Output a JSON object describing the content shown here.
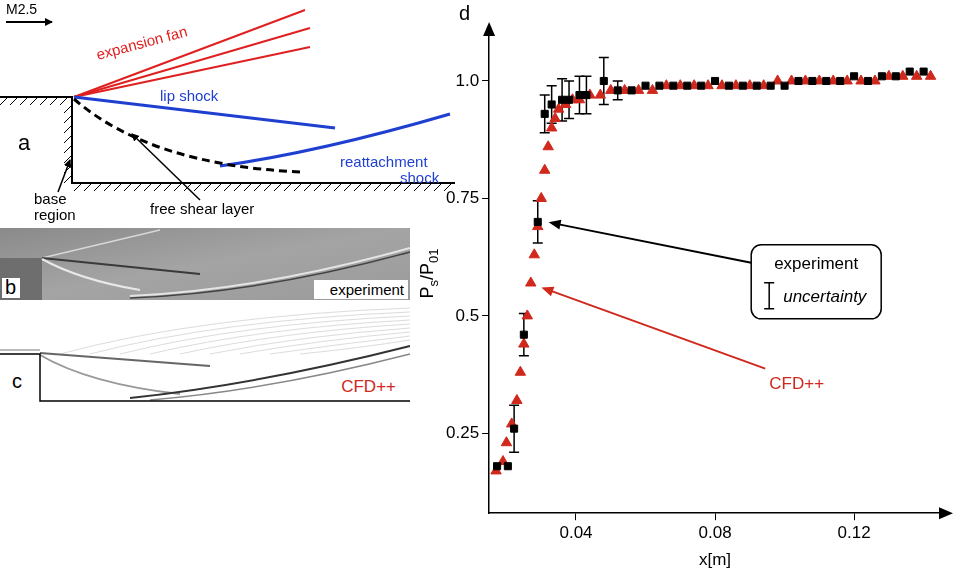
{
  "panels": {
    "a": {
      "letter": "a",
      "flow_label": "M2.5",
      "expansion_fan": "expansion fan",
      "lip_shock": "lip shock",
      "reattachment_shock": "reattachment shock",
      "base_region": "base region",
      "free_shear_layer": "free shear layer"
    },
    "b": {
      "letter": "b",
      "label": "experiment"
    },
    "c": {
      "letter": "c",
      "label": "CFD++"
    }
  },
  "chart_data": {
    "type": "scatter",
    "panel": "d",
    "y_label": [
      {
        "text": "P"
      },
      {
        "text": "s",
        "sub": true
      },
      {
        "text": "/P"
      },
      {
        "text": "01",
        "sub": true
      }
    ],
    "x_label": "x[m]",
    "xlim": [
      0.015,
      0.145
    ],
    "xticks": [
      0.04,
      0.08,
      0.12
    ],
    "ylim": [
      0.08,
      1.1
    ],
    "yticks": [
      0.25,
      0.5,
      0.75,
      {
        "value": 1,
        "label": "1.0"
      }
    ],
    "grid": false,
    "series": [
      {
        "name": "CFD++",
        "color": "#d0281c",
        "marker": "triangle",
        "x": [
          0.017,
          0.019,
          0.02,
          0.0215,
          0.023,
          0.024,
          0.025,
          0.026,
          0.027,
          0.028,
          0.029,
          0.03,
          0.031,
          0.032,
          0.033,
          0.034,
          0.035,
          0.037,
          0.039,
          0.041,
          0.044,
          0.047,
          0.05,
          0.054,
          0.058,
          0.062,
          0.066,
          0.07,
          0.074,
          0.078,
          0.082,
          0.086,
          0.09,
          0.094,
          0.098,
          0.102,
          0.106,
          0.11,
          0.114,
          0.118,
          0.122,
          0.126,
          0.13,
          0.134,
          0.138,
          0.142
        ],
        "values": [
          0.17,
          0.19,
          0.23,
          0.27,
          0.32,
          0.38,
          0.44,
          0.5,
          0.57,
          0.63,
          0.69,
          0.75,
          0.81,
          0.86,
          0.9,
          0.92,
          0.94,
          0.95,
          0.96,
          0.96,
          0.97,
          0.97,
          0.98,
          0.98,
          0.98,
          0.98,
          0.99,
          0.99,
          0.99,
          0.99,
          0.99,
          0.99,
          0.99,
          0.99,
          1.0,
          1.0,
          1.0,
          1.0,
          1.0,
          1.0,
          1.0,
          1.0,
          1.01,
          1.01,
          1.01,
          1.01
        ],
        "annotation": {
          "x": 0.027,
          "y": 0.57
        }
      },
      {
        "name": "experiment",
        "color": "#000000",
        "marker": "square",
        "uncertainty_label": "uncertainty",
        "x": [
          0.0173,
          0.0204,
          0.0222,
          0.025,
          0.029,
          0.031,
          0.033,
          0.036,
          0.038,
          0.041,
          0.043,
          0.048,
          0.052,
          0.056,
          0.06,
          0.064,
          0.068,
          0.072,
          0.076,
          0.08,
          0.084,
          0.088,
          0.092,
          0.096,
          0.1,
          0.104,
          0.108,
          0.112,
          0.116,
          0.12,
          0.124,
          0.128,
          0.132,
          0.136,
          0.14
        ],
        "values": [
          0.18,
          0.18,
          0.26,
          0.46,
          0.7,
          0.93,
          0.95,
          0.96,
          0.96,
          0.97,
          0.97,
          1.0,
          0.98,
          0.98,
          0.99,
          0.99,
          0.99,
          0.99,
          0.99,
          1.0,
          0.99,
          0.99,
          0.99,
          0.99,
          0.99,
          1.0,
          1.0,
          1.0,
          1.0,
          1.01,
          1.0,
          1.01,
          1.01,
          1.02,
          1.02
        ],
        "errors": [
          null,
          null,
          0.05,
          0.045,
          0.045,
          0.04,
          0.04,
          0.045,
          0.04,
          0.04,
          0.04,
          0.05,
          0.02,
          null,
          null,
          null,
          null,
          null,
          null,
          null,
          null,
          null,
          null,
          null,
          null,
          null,
          null,
          null,
          null,
          null,
          null,
          null,
          null,
          null,
          null
        ],
        "annotation": {
          "x": 0.029,
          "y": 0.7
        }
      }
    ]
  }
}
